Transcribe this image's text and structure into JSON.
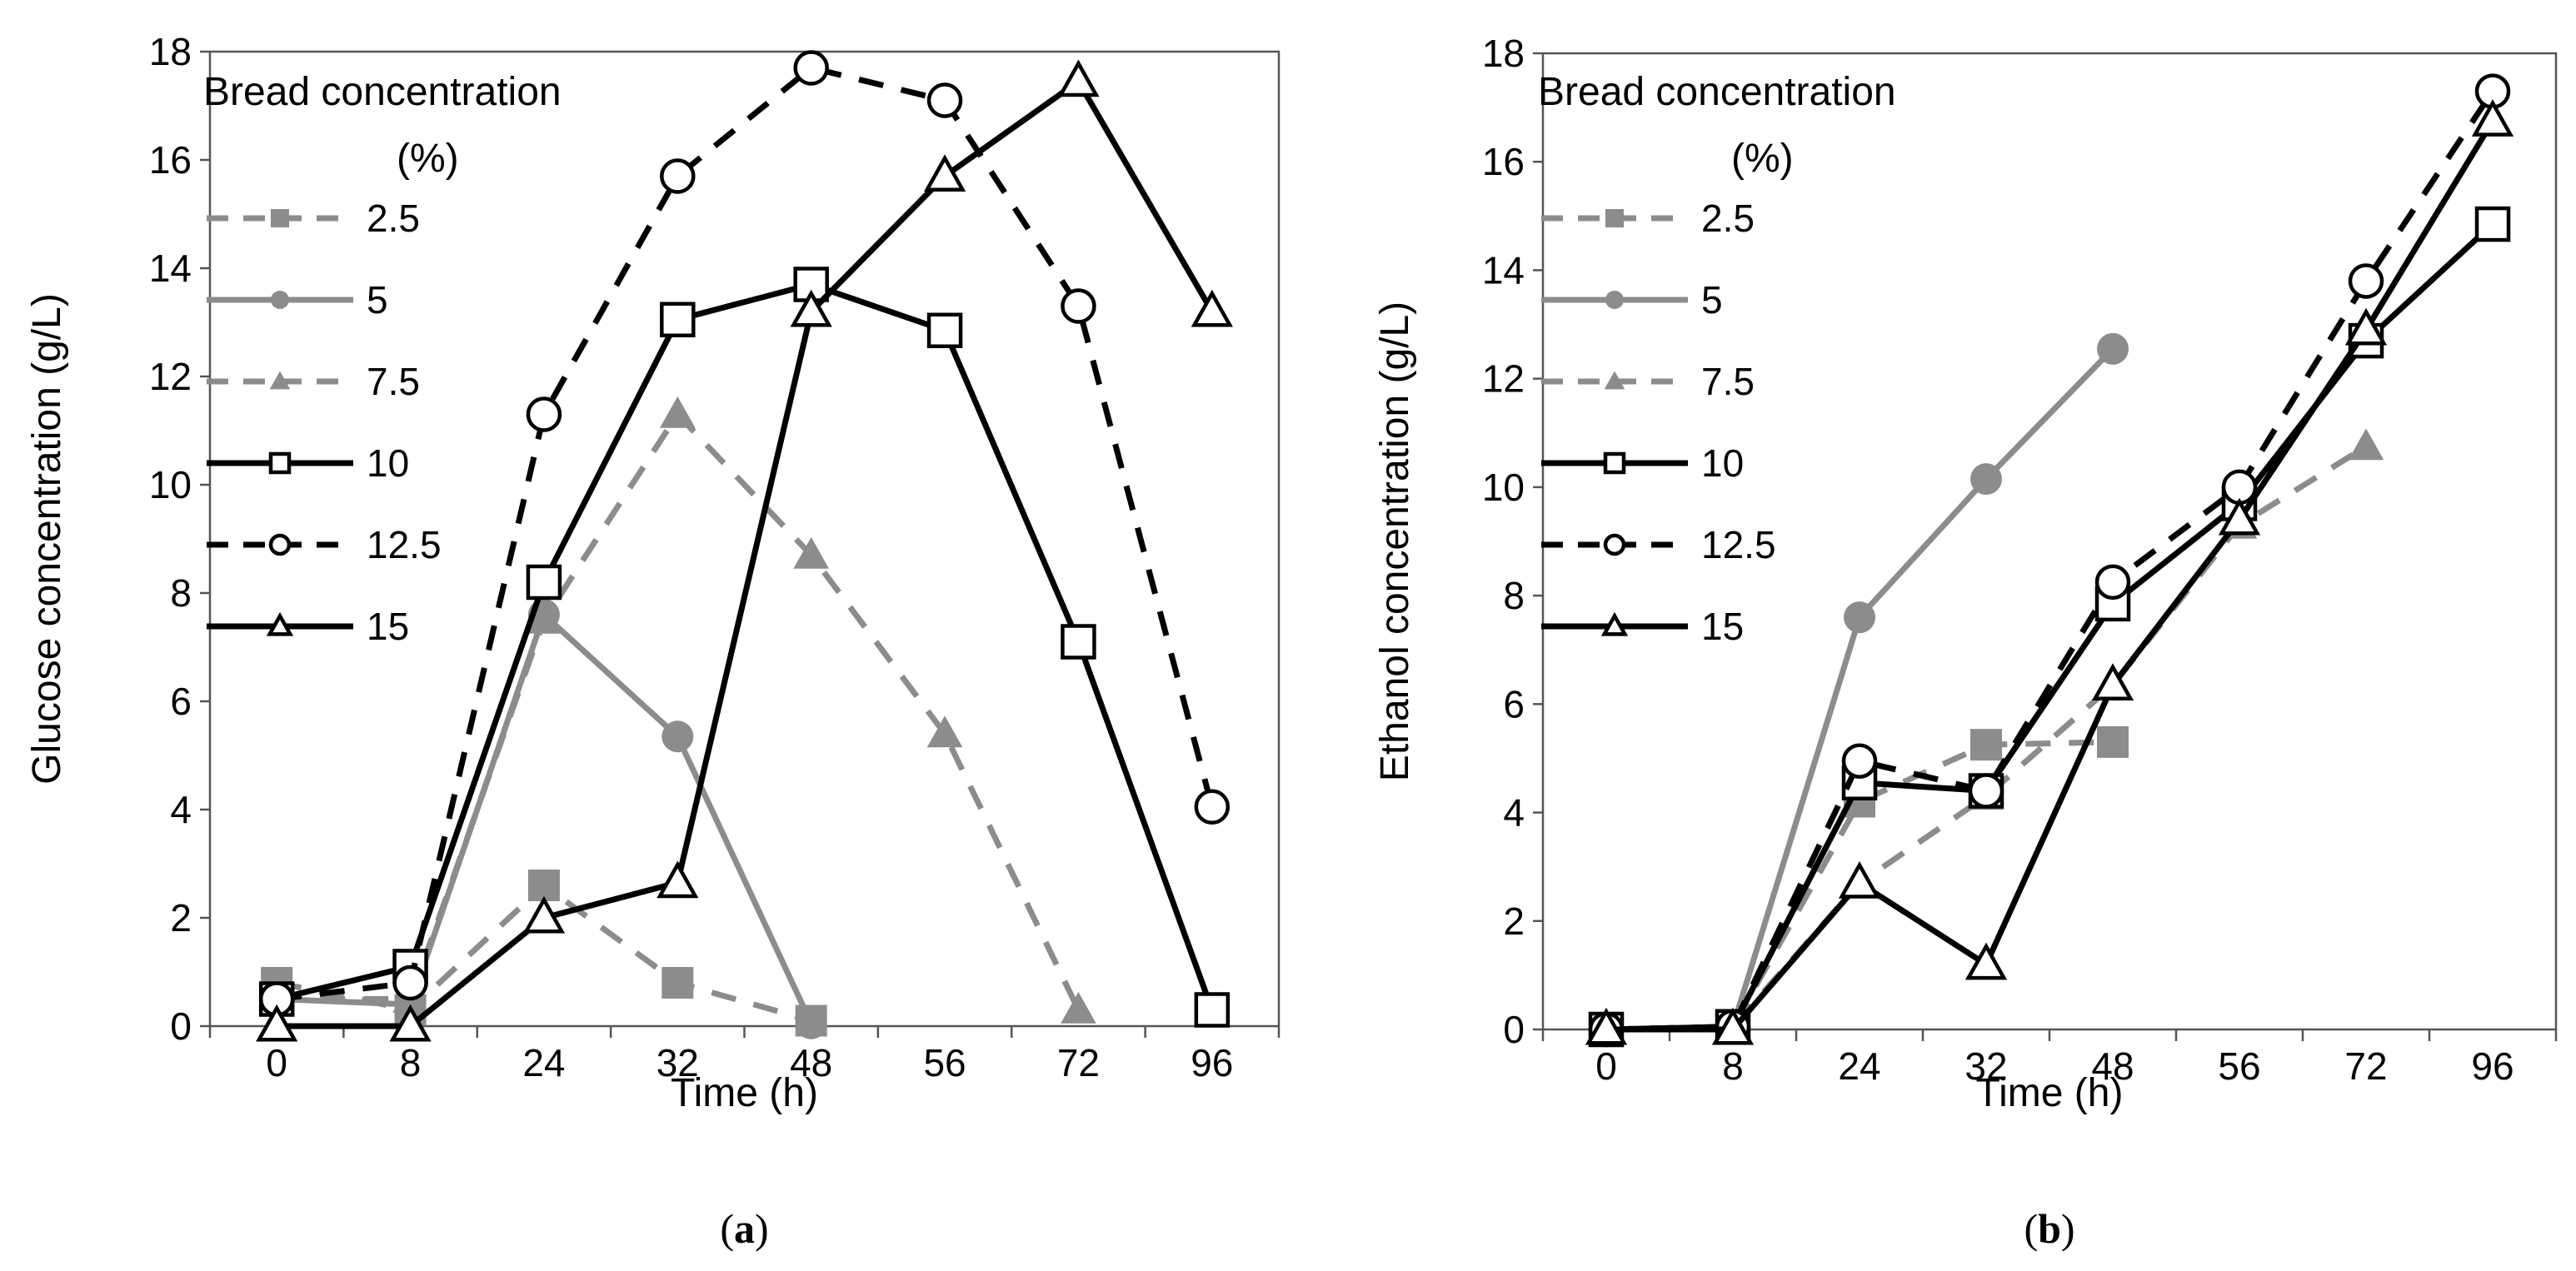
{
  "chart_data": [
    {
      "type": "line",
      "panel_label": "a",
      "xlabel": "Time (h)",
      "ylabel": "Glucose concentration (g/L)",
      "categories": [
        "0",
        "8",
        "24",
        "32",
        "48",
        "56",
        "72",
        "96"
      ],
      "ylim": [
        0,
        18
      ],
      "yticks": [
        "0",
        "2",
        "4",
        "6",
        "8",
        "10",
        "12",
        "14",
        "16",
        "18"
      ],
      "grid": false,
      "legend_title": "Bread concentration",
      "legend_subtitle": "(%)",
      "legend_position": "top-left",
      "series": [
        {
          "name": "2.5",
          "color": "#8c8c8c",
          "dash": true,
          "marker": "square-filled",
          "values": [
            0.8,
            0.3,
            2.6,
            0.8,
            0.1,
            null,
            null,
            null
          ]
        },
        {
          "name": "5",
          "color": "#8c8c8c",
          "dash": false,
          "marker": "circle-filled",
          "values": [
            0.5,
            0.4,
            7.6,
            5.35,
            0.05,
            null,
            null,
            null
          ]
        },
        {
          "name": "7.5",
          "color": "#8c8c8c",
          "dash": true,
          "marker": "triangle-filled",
          "values": [
            0.5,
            0.5,
            7.5,
            11.3,
            8.7,
            5.4,
            0.3,
            null
          ]
        },
        {
          "name": "10",
          "color": "#000000",
          "dash": false,
          "marker": "square-open",
          "values": [
            0.5,
            1.1,
            8.2,
            13.05,
            13.7,
            12.85,
            7.1,
            0.3
          ]
        },
        {
          "name": "12.5",
          "color": "#000000",
          "dash": true,
          "marker": "circle-open",
          "values": [
            0.5,
            0.8,
            11.3,
            15.7,
            17.7,
            17.1,
            13.3,
            4.05
          ]
        },
        {
          "name": "15",
          "color": "#000000",
          "dash": false,
          "marker": "triangle-open",
          "values": [
            0.0,
            0.0,
            2.0,
            2.65,
            13.2,
            15.7,
            17.45,
            13.2
          ]
        }
      ]
    },
    {
      "type": "line",
      "panel_label": "b",
      "xlabel": "Time (h)",
      "ylabel": "Ethanol concentration (g/L)",
      "categories": [
        "0",
        "8",
        "24",
        "32",
        "48",
        "56",
        "72",
        "96"
      ],
      "ylim": [
        0,
        18
      ],
      "yticks": [
        "0",
        "2",
        "4",
        "6",
        "8",
        "10",
        "12",
        "14",
        "16",
        "18"
      ],
      "grid": false,
      "legend_title": "Bread concentration",
      "legend_subtitle": "(%)",
      "legend_position": "top-left",
      "series": [
        {
          "name": "2.5",
          "color": "#8c8c8c",
          "dash": true,
          "marker": "square-filled",
          "values": [
            0.0,
            0.05,
            4.2,
            5.25,
            5.3,
            null,
            null,
            null
          ]
        },
        {
          "name": "5",
          "color": "#8c8c8c",
          "dash": false,
          "marker": "circle-filled",
          "values": [
            0.0,
            0.05,
            7.6,
            10.15,
            12.55,
            null,
            null,
            null
          ]
        },
        {
          "name": "7.5",
          "color": "#8c8c8c",
          "dash": true,
          "marker": "triangle-filled",
          "values": [
            0.0,
            0.05,
            2.7,
            4.3,
            6.35,
            9.3,
            10.75,
            null
          ]
        },
        {
          "name": "10",
          "color": "#000000",
          "dash": false,
          "marker": "square-open",
          "values": [
            0.0,
            0.05,
            4.55,
            4.4,
            7.85,
            9.7,
            12.7,
            14.85
          ]
        },
        {
          "name": "12.5",
          "color": "#000000",
          "dash": true,
          "marker": "circle-open",
          "values": [
            0.0,
            0.05,
            4.95,
            4.4,
            8.25,
            10.0,
            13.8,
            17.3
          ]
        },
        {
          "name": "15",
          "color": "#000000",
          "dash": false,
          "marker": "triangle-open",
          "values": [
            0.0,
            0.0,
            2.7,
            1.2,
            6.35,
            9.4,
            12.9,
            16.75
          ]
        }
      ]
    }
  ]
}
